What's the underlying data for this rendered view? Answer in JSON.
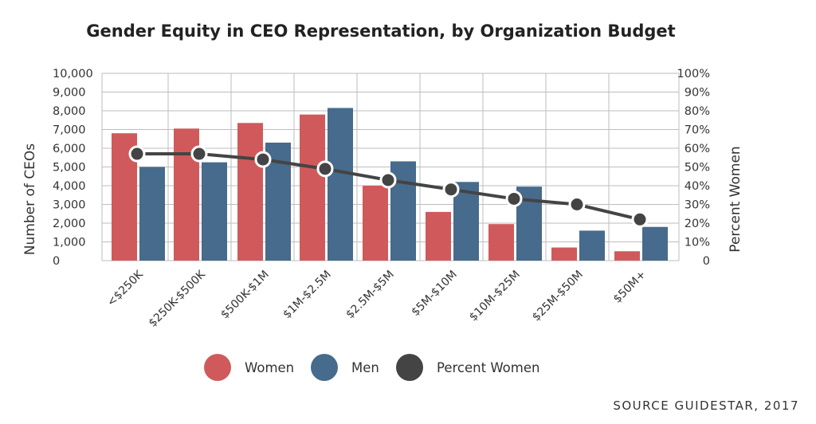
{
  "chart_data": {
    "type": "bar",
    "title": "Gender Equity in CEO Representation, by Organization Budget",
    "ylabel": "Number of CEOs",
    "y2label": "Percent Women",
    "ylim": [
      0,
      10000
    ],
    "y2lim": [
      0,
      100
    ],
    "y_ticks": [
      "0",
      "1,000",
      "2,000",
      "3,000",
      "4,000",
      "5,000",
      "6,000",
      "7,000",
      "8,000",
      "9,000",
      "10,000"
    ],
    "y2_ticks": [
      "0",
      "10%",
      "20%",
      "30%",
      "40%",
      "50%",
      "60%",
      "70%",
      "80%",
      "90%",
      "100%"
    ],
    "categories": [
      "<$250K",
      "$250K-$500K",
      "$500K-$1M",
      "$1M-$2.5M",
      "$2.5M-$5M",
      "$5M-$10M",
      "$10M-$25M",
      "$25M-$50M",
      "$50M+"
    ],
    "series": [
      {
        "name": "Women",
        "type": "bar",
        "axis": "left",
        "color": "#d05a5b",
        "values": [
          6800,
          7050,
          7350,
          7800,
          4000,
          2600,
          1950,
          700,
          500
        ]
      },
      {
        "name": "Men",
        "type": "bar",
        "axis": "left",
        "color": "#466b8c",
        "values": [
          5000,
          5250,
          6300,
          8150,
          5300,
          4200,
          3950,
          1600,
          1800
        ]
      },
      {
        "name": "Percent Women",
        "type": "line",
        "axis": "right",
        "color": "#444444",
        "values": [
          57,
          57,
          54,
          49,
          43,
          38,
          33,
          30,
          22
        ]
      }
    ],
    "grid": true,
    "legend_position": "bottom"
  },
  "source_note": "SOURCE GUIDESTAR, 2017"
}
